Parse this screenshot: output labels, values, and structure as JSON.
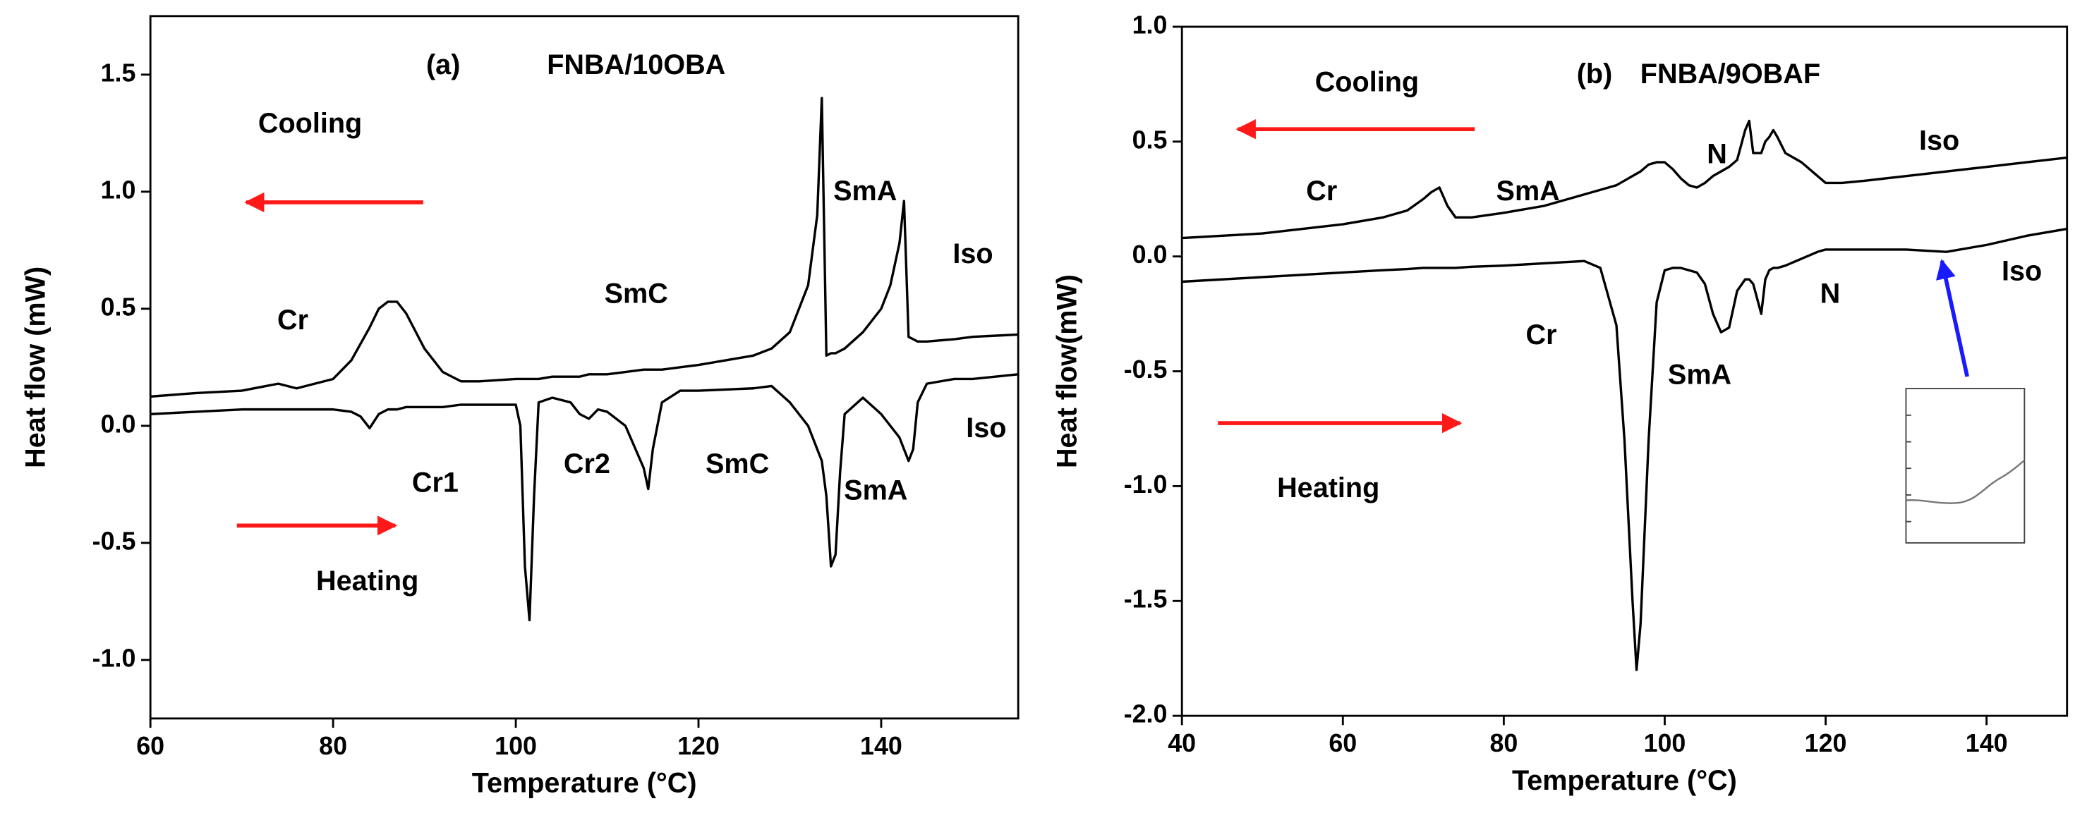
{
  "chart_data": [
    {
      "type": "line",
      "xlabel": "Temperature (°C)",
      "ylabel": "Heat flow (mW)",
      "annotations": [
        "(a)",
        "FNBA/10OBA",
        "Cooling",
        "Cr",
        "SmC",
        "SmA",
        "Iso",
        "Cr1",
        "Cr2",
        "SmC",
        "SmA",
        "Iso",
        "Heating"
      ],
      "xlim": [
        60,
        155
      ],
      "xticks": [
        60,
        80,
        100,
        120,
        140
      ],
      "ylim": [
        -1.25,
        1.75
      ],
      "yticks": [
        {
          "value": -1,
          "label": "-1.0"
        },
        {
          "value": -0.5,
          "label": "-0.5"
        },
        {
          "value": 0,
          "label": "0.0"
        },
        {
          "value": 0.5,
          "label": "0.5"
        },
        {
          "value": 1,
          "label": "1.0"
        },
        {
          "value": 1.5,
          "label": "1.5"
        }
      ],
      "x": [
        60,
        65,
        70,
        74,
        76,
        80,
        82,
        83,
        84,
        85,
        86,
        87,
        88,
        90,
        92,
        94,
        96,
        100,
        100.5,
        101,
        101.5,
        102,
        102.5,
        104,
        106,
        107,
        108,
        109,
        110,
        112,
        114,
        114.5,
        115,
        116,
        118,
        120,
        126,
        128,
        130,
        132,
        133,
        133.5,
        134,
        134.5,
        135,
        135.5,
        136,
        138,
        140,
        141,
        142,
        142.5,
        143,
        143.5,
        144,
        145,
        148,
        150,
        155
      ],
      "series": [
        {
          "color": "#000000",
          "values": [
            0.125,
            0.14,
            0.15,
            0.18,
            0.16,
            0.2,
            0.28,
            0.35,
            0.42,
            0.5,
            0.53,
            0.53,
            0.48,
            0.33,
            0.23,
            0.19,
            0.19,
            0.2,
            0.2,
            0.2,
            0.2,
            0.2,
            0.2,
            0.21,
            0.21,
            0.21,
            0.22,
            0.22,
            0.22,
            0.23,
            0.24,
            0.24,
            0.24,
            0.24,
            0.25,
            0.26,
            0.3,
            0.33,
            0.4,
            0.6,
            0.9,
            1.4,
            0.3,
            0.31,
            0.31,
            0.32,
            0.33,
            0.4,
            0.5,
            0.6,
            0.78,
            0.96,
            0.38,
            0.37,
            0.36,
            0.36,
            0.37,
            0.38,
            0.39
          ]
        },
        {
          "color": "#000000",
          "values": [
            0.05,
            0.06,
            0.07,
            0.07,
            0.07,
            0.07,
            0.06,
            0.04,
            -0.01,
            0.05,
            0.07,
            0.07,
            0.08,
            0.08,
            0.08,
            0.09,
            0.09,
            0.09,
            0,
            -0.6,
            -0.83,
            -0.3,
            0.1,
            0.12,
            0.1,
            0.05,
            0.03,
            0.07,
            0.06,
            0,
            -0.18,
            -0.27,
            -0.1,
            0.1,
            0.15,
            0.15,
            0.16,
            0.17,
            0.1,
            0,
            -0.1,
            -0.15,
            -0.3,
            -0.6,
            -0.55,
            -0.2,
            0.05,
            0.12,
            0.05,
            0,
            -0.05,
            -0.1,
            -0.15,
            -0.1,
            0.1,
            0.18,
            0.2,
            0.2,
            0.22
          ]
        }
      ]
    },
    {
      "type": "line",
      "xlabel": "Temperature (°C)",
      "ylabel": "Heat flow(mW)",
      "annotations": [
        "(b)",
        "FNBA/9OBAF",
        "Cooling",
        "Cr",
        "SmA",
        "N",
        "Iso",
        "Cr",
        "SmA",
        "N",
        "Iso",
        "Heating"
      ],
      "xlim": [
        40,
        150
      ],
      "xticks": [
        40,
        60,
        80,
        100,
        120,
        140
      ],
      "ylim": [
        -2,
        1
      ],
      "yticks": [
        {
          "value": -2,
          "label": "-2.0"
        },
        {
          "value": -1.5,
          "label": "-1.5"
        },
        {
          "value": -1,
          "label": "-1.0"
        },
        {
          "value": -0.5,
          "label": "-0.5"
        },
        {
          "value": 0,
          "label": "0.0"
        },
        {
          "value": 0.5,
          "label": "0.5"
        },
        {
          "value": 1,
          "label": "1.0"
        }
      ],
      "x": [
        40,
        50,
        60,
        65,
        68,
        70,
        71,
        72,
        73,
        74,
        76,
        80,
        85,
        90,
        92,
        94,
        95,
        96,
        96.5,
        97,
        98,
        99,
        100,
        101,
        102,
        103,
        104,
        105,
        106,
        107,
        108,
        109,
        110,
        110.5,
        111,
        112,
        112.5,
        113,
        113.5,
        114,
        115,
        117,
        119,
        120,
        122,
        125,
        130,
        135,
        140,
        145,
        150
      ],
      "series": [
        {
          "color": "#000000",
          "values": [
            0.08,
            0.1,
            0.14,
            0.17,
            0.2,
            0.25,
            0.28,
            0.3,
            0.22,
            0.17,
            0.17,
            0.19,
            0.22,
            0.27,
            0.29,
            0.31,
            0.33,
            0.35,
            0.36,
            0.37,
            0.4,
            0.41,
            0.41,
            0.38,
            0.34,
            0.31,
            0.3,
            0.32,
            0.35,
            0.37,
            0.39,
            0.42,
            0.55,
            0.59,
            0.45,
            0.45,
            0.5,
            0.52,
            0.55,
            0.52,
            0.45,
            0.41,
            0.35,
            0.32,
            0.32,
            0.33,
            0.35,
            0.37,
            0.39,
            0.41,
            0.43
          ]
        },
        {
          "color": "#000000",
          "values": [
            -0.11,
            -0.09,
            -0.07,
            -0.06,
            -0.055,
            -0.05,
            -0.05,
            -0.05,
            -0.05,
            -0.05,
            -0.045,
            -0.04,
            -0.03,
            -0.02,
            -0.05,
            -0.3,
            -0.8,
            -1.5,
            -1.8,
            -1.6,
            -0.8,
            -0.2,
            -0.06,
            -0.05,
            -0.05,
            -0.06,
            -0.07,
            -0.12,
            -0.25,
            -0.33,
            -0.31,
            -0.15,
            -0.1,
            -0.1,
            -0.12,
            -0.25,
            -0.1,
            -0.06,
            -0.05,
            -0.05,
            -0.04,
            -0.01,
            0.02,
            0.03,
            0.03,
            0.03,
            0.03,
            0.02,
            0.05,
            0.09,
            0.12
          ]
        }
      ]
    }
  ]
}
